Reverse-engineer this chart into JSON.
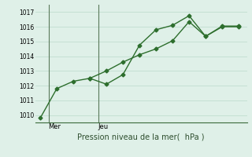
{
  "line1_x": [
    0,
    1,
    2,
    3,
    4,
    5,
    6,
    7,
    8,
    9,
    10,
    11,
    12
  ],
  "line1_y": [
    1009.8,
    1011.8,
    1012.3,
    1012.5,
    1012.1,
    1012.75,
    1014.75,
    1015.8,
    1016.1,
    1016.75,
    1015.35,
    1016.05,
    1016.05
  ],
  "line2_x": [
    3,
    4,
    5,
    6,
    7,
    8,
    9,
    10,
    11,
    12
  ],
  "line2_y": [
    1012.5,
    1013.0,
    1013.6,
    1014.1,
    1014.5,
    1015.05,
    1016.35,
    1015.35,
    1016.0,
    1016.0
  ],
  "line_color": "#2d6e2d",
  "bg_color": "#dff0e8",
  "grid_color": "#c0ddd0",
  "xlabel": "Pression niveau de la mer(  hPa )",
  "ylim": [
    1009.5,
    1017.5
  ],
  "yticks": [
    1010,
    1011,
    1012,
    1013,
    1014,
    1015,
    1016,
    1017
  ],
  "vline_x": [
    0.5,
    3.5
  ],
  "xtick_positions": [
    0.5,
    3.5
  ],
  "xtick_labels": [
    "Mer",
    "Jeu"
  ],
  "xlim": [
    -0.3,
    12.5
  ],
  "marker": "D",
  "markersize": 2.5,
  "linewidth": 1.0
}
